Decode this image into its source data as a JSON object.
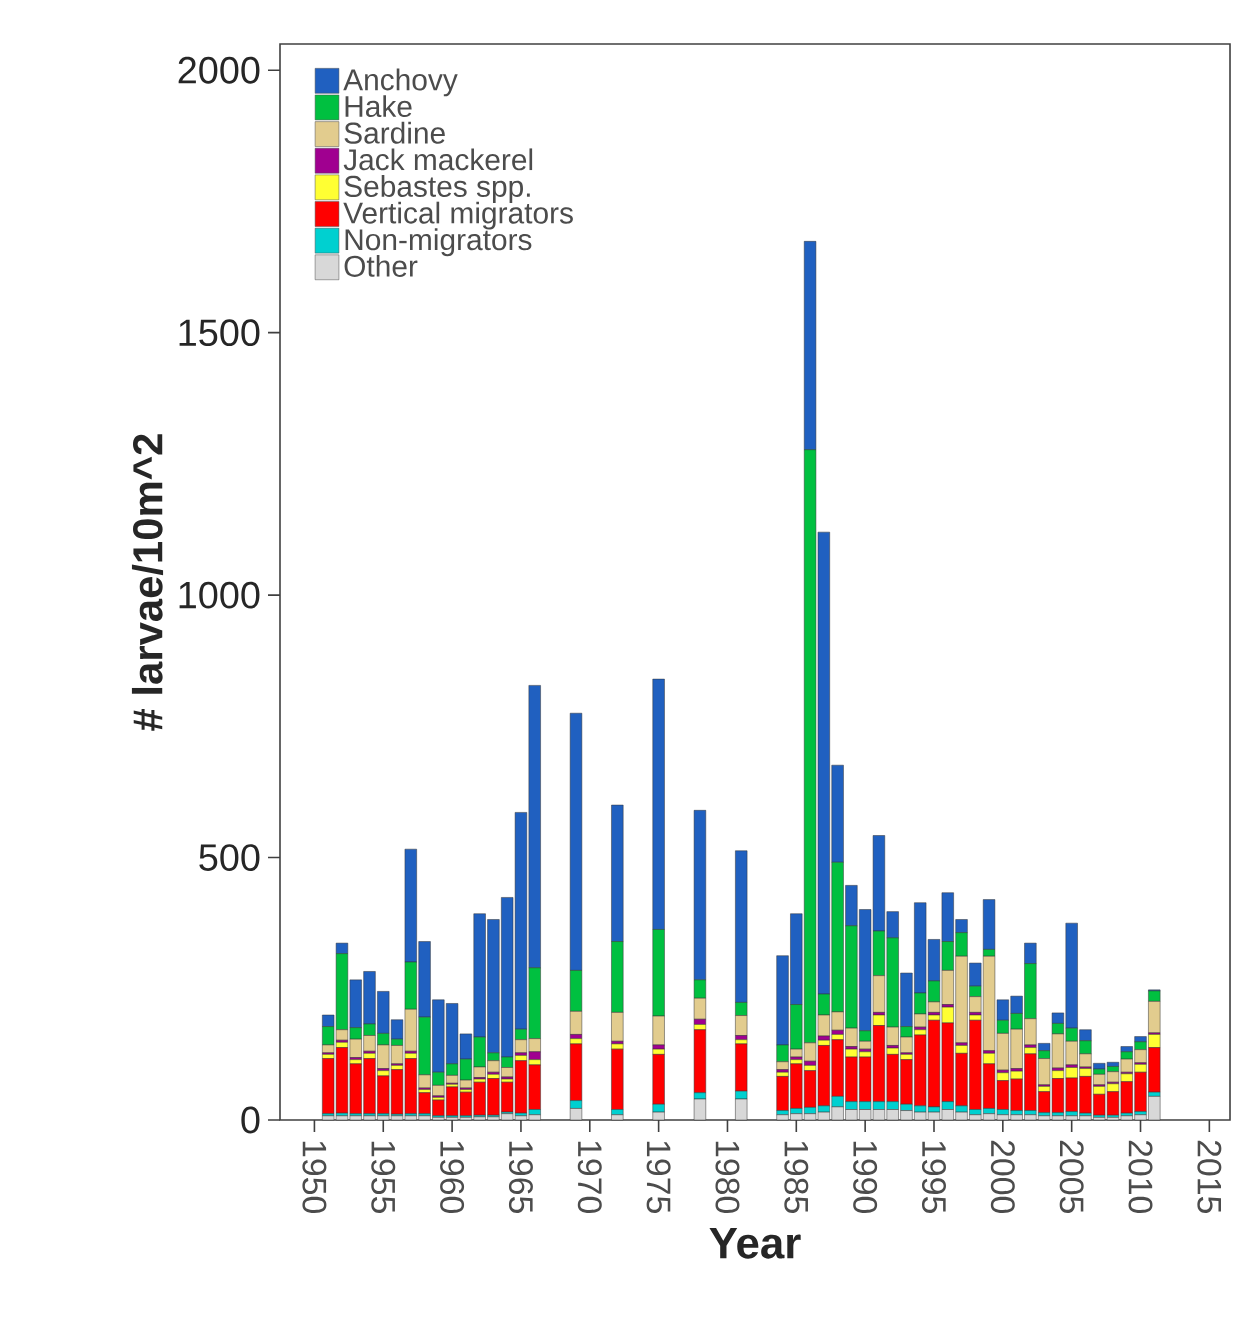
{
  "chart_data": {
    "type": "bar",
    "stacked": true,
    "xlabel": "Year",
    "ylabel": "# larvae/10m^2",
    "x": [
      1951,
      1952,
      1953,
      1954,
      1955,
      1956,
      1957,
      1958,
      1959,
      1960,
      1961,
      1962,
      1963,
      1964,
      1965,
      1966,
      1969,
      1972,
      1975,
      1978,
      1981,
      1984,
      1985,
      1986,
      1987,
      1988,
      1989,
      1990,
      1991,
      1992,
      1993,
      1994,
      1995,
      1996,
      1997,
      1998,
      1999,
      2000,
      2001,
      2002,
      2003,
      2004,
      2005,
      2006,
      2007,
      2008,
      2009,
      2010,
      2011
    ],
    "series": [
      {
        "name": "Other",
        "color": "#d8d8d8",
        "values": [
          8,
          8,
          8,
          8,
          8,
          8,
          8,
          8,
          5,
          5,
          5,
          6,
          6,
          12,
          8,
          10,
          22,
          10,
          15,
          40,
          40,
          10,
          12,
          12,
          15,
          25,
          20,
          20,
          20,
          20,
          18,
          15,
          15,
          20,
          15,
          10,
          12,
          10,
          10,
          10,
          8,
          8,
          8,
          8,
          5,
          5,
          8,
          10,
          45
        ]
      },
      {
        "name": "Non-migrators",
        "color": "#00d0d0",
        "values": [
          4,
          5,
          4,
          4,
          4,
          3,
          4,
          4,
          3,
          3,
          3,
          3,
          3,
          3,
          5,
          10,
          15,
          10,
          15,
          12,
          15,
          8,
          10,
          12,
          12,
          20,
          15,
          15,
          15,
          15,
          12,
          12,
          10,
          15,
          12,
          10,
          10,
          10,
          8,
          8,
          6,
          6,
          8,
          5,
          4,
          4,
          5,
          6,
          8
        ]
      },
      {
        "name": "Vertical migrators",
        "color": "#ff0000",
        "values": [
          105,
          125,
          95,
          105,
          72,
          85,
          105,
          40,
          30,
          55,
          45,
          63,
          70,
          57,
          100,
          85,
          108,
          115,
          95,
          120,
          90,
          65,
          85,
          70,
          115,
          108,
          85,
          85,
          145,
          90,
          85,
          135,
          165,
          150,
          100,
          170,
          85,
          55,
          60,
          108,
          40,
          65,
          64,
          70,
          40,
          45,
          60,
          75,
          85
        ]
      },
      {
        "name": "Sebastes spp.",
        "color": "#ffff33",
        "values": [
          8,
          10,
          8,
          10,
          10,
          8,
          10,
          6,
          5,
          5,
          5,
          6,
          8,
          6,
          10,
          10,
          10,
          10,
          10,
          10,
          8,
          8,
          8,
          10,
          10,
          10,
          15,
          10,
          20,
          12,
          10,
          10,
          10,
          30,
          15,
          10,
          20,
          15,
          15,
          12,
          10,
          15,
          20,
          15,
          15,
          15,
          15,
          15,
          25
        ]
      },
      {
        "name": "Jack mackerel",
        "color": "#a00090",
        "values": [
          3,
          4,
          4,
          4,
          4,
          3,
          4,
          3,
          3,
          2,
          3,
          3,
          4,
          4,
          5,
          15,
          8,
          5,
          8,
          10,
          8,
          5,
          5,
          8,
          8,
          8,
          5,
          5,
          5,
          5,
          3,
          5,
          5,
          5,
          5,
          5,
          5,
          5,
          5,
          5,
          3,
          5,
          5,
          3,
          3,
          3,
          3,
          3,
          3
        ]
      },
      {
        "name": "Sardine",
        "color": "#e2cc8e",
        "values": [
          15,
          20,
          35,
          30,
          45,
          35,
          80,
          25,
          20,
          15,
          15,
          20,
          22,
          18,
          25,
          25,
          44,
          55,
          55,
          40,
          38,
          15,
          15,
          35,
          40,
          35,
          35,
          15,
          70,
          35,
          30,
          25,
          20,
          65,
          165,
          30,
          180,
          70,
          75,
          50,
          50,
          65,
          45,
          25,
          20,
          20,
          25,
          25,
          60
        ]
      },
      {
        "name": "Hake",
        "color": "#00c040",
        "values": [
          35,
          145,
          22,
          22,
          22,
          12,
          90,
          110,
          25,
          22,
          40,
          57,
          15,
          20,
          20,
          135,
          78,
          135,
          165,
          35,
          25,
          32,
          85,
          1130,
          40,
          285,
          195,
          20,
          85,
          170,
          20,
          40,
          40,
          55,
          45,
          20,
          13,
          25,
          30,
          105,
          15,
          20,
          25,
          25,
          10,
          10,
          14,
          15,
          20
        ]
      },
      {
        "name": "Anchovy",
        "color": "#2060c0",
        "values": [
          22,
          20,
          91,
          100,
          80,
          37,
          215,
          144,
          138,
          115,
          48,
          235,
          254,
          304,
          413,
          538,
          490,
          260,
          477,
          323,
          289,
          170,
          173,
          397,
          880,
          185,
          77,
          231,
          182,
          50,
          102,
          172,
          79,
          93,
          25,
          44,
          95,
          39,
          33,
          39,
          14,
          20,
          200,
          21,
          11,
          8,
          10,
          10,
          2
        ]
      }
    ],
    "xlim": [
      1947.5,
      2016.5
    ],
    "xticks": [
      1950,
      1955,
      1960,
      1965,
      1970,
      1975,
      1980,
      1985,
      1990,
      1995,
      2000,
      2005,
      2010,
      2015
    ],
    "ylim": [
      0,
      2050
    ],
    "yticks": [
      0,
      500,
      1000,
      1500,
      2000
    ],
    "legend": "top left"
  }
}
